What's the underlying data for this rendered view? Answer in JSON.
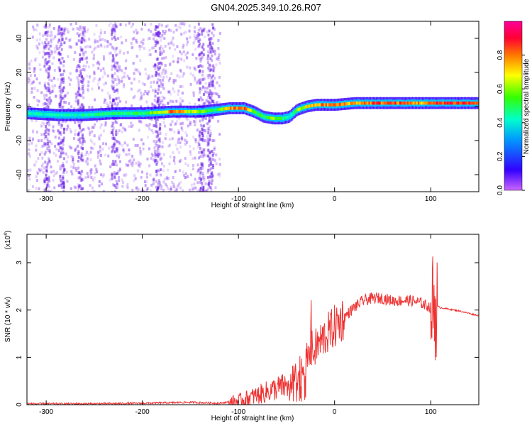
{
  "title": "GN04.2025.349.10.26.R07",
  "chart_data": [
    {
      "type": "heatmap",
      "xlabel": "Height of straight line (km)",
      "ylabel": "Frequency (Hz)",
      "xlim": [
        -320,
        150
      ],
      "ylim": [
        -50,
        50
      ],
      "xticks": [
        -300,
        -200,
        -100,
        0,
        100
      ],
      "yticks": [
        -40,
        -20,
        0,
        20,
        40
      ],
      "colorbar": {
        "label": "Normalized spectral amplitude",
        "range": [
          0,
          1
        ],
        "ticks": [
          0.0,
          0.2,
          0.4,
          0.6,
          0.8
        ],
        "colors": [
          "#cc66ff",
          "#3300ff",
          "#0099ff",
          "#00ffcc",
          "#33ff00",
          "#ffff00",
          "#ff7700",
          "#ff0033",
          "#ff0099"
        ]
      },
      "ridge": {
        "x": [
          -320,
          -290,
          -260,
          -230,
          -200,
          -170,
          -140,
          -125,
          -110,
          -95,
          -85,
          -75,
          -65,
          -55,
          -48,
          -40,
          -30,
          -20,
          -10,
          0,
          20,
          40,
          60,
          80,
          95,
          110,
          130,
          150
        ],
        "freq": [
          -4,
          -5,
          -5,
          -4,
          -4,
          -3,
          -3,
          -2,
          -1,
          -1,
          -3,
          -6,
          -7,
          -7,
          -6,
          -2,
          0,
          1,
          1,
          1,
          2,
          2,
          2,
          2,
          2,
          2,
          2,
          2
        ],
        "amplitude": [
          0.4,
          0.45,
          0.45,
          0.5,
          0.5,
          0.85,
          0.6,
          0.5,
          0.85,
          0.85,
          0.6,
          0.5,
          0.6,
          0.5,
          0.4,
          0.6,
          0.7,
          0.8,
          0.85,
          0.85,
          0.8,
          0.9,
          0.9,
          0.85,
          0.8,
          0.95,
          0.95,
          0.9
        ]
      },
      "noise_region": [
        -320,
        -120
      ]
    },
    {
      "type": "line",
      "xlabel": "Height of straight line (km)",
      "ylabel": "SNR (10 * v/v)",
      "y_multiplier": "(x10^4)",
      "xlim": [
        -320,
        150
      ],
      "ylim": [
        0,
        3.6
      ],
      "xticks": [
        -300,
        -200,
        -100,
        0,
        100
      ],
      "yticks": [
        0,
        1,
        2,
        3
      ],
      "series": [
        {
          "color": "#ee3333",
          "x": [
            -320,
            -250,
            -200,
            -150,
            -120,
            -100,
            -80,
            -60,
            -50,
            -40,
            -35,
            -30,
            -25,
            -20,
            -10,
            0,
            10,
            20,
            30,
            40,
            50,
            60,
            70,
            80,
            90,
            95,
            100,
            105,
            110,
            130,
            150
          ],
          "values": [
            0.02,
            0.02,
            0.03,
            0.05,
            0.03,
            0.08,
            0.2,
            0.35,
            0.4,
            0.6,
            0.75,
            0.9,
            1.0,
            1.2,
            1.45,
            1.65,
            1.85,
            2.05,
            2.2,
            2.25,
            2.25,
            2.2,
            2.2,
            2.2,
            2.15,
            2.1,
            2.05,
            2.1,
            2.05,
            1.98,
            1.88
          ]
        }
      ]
    }
  ]
}
